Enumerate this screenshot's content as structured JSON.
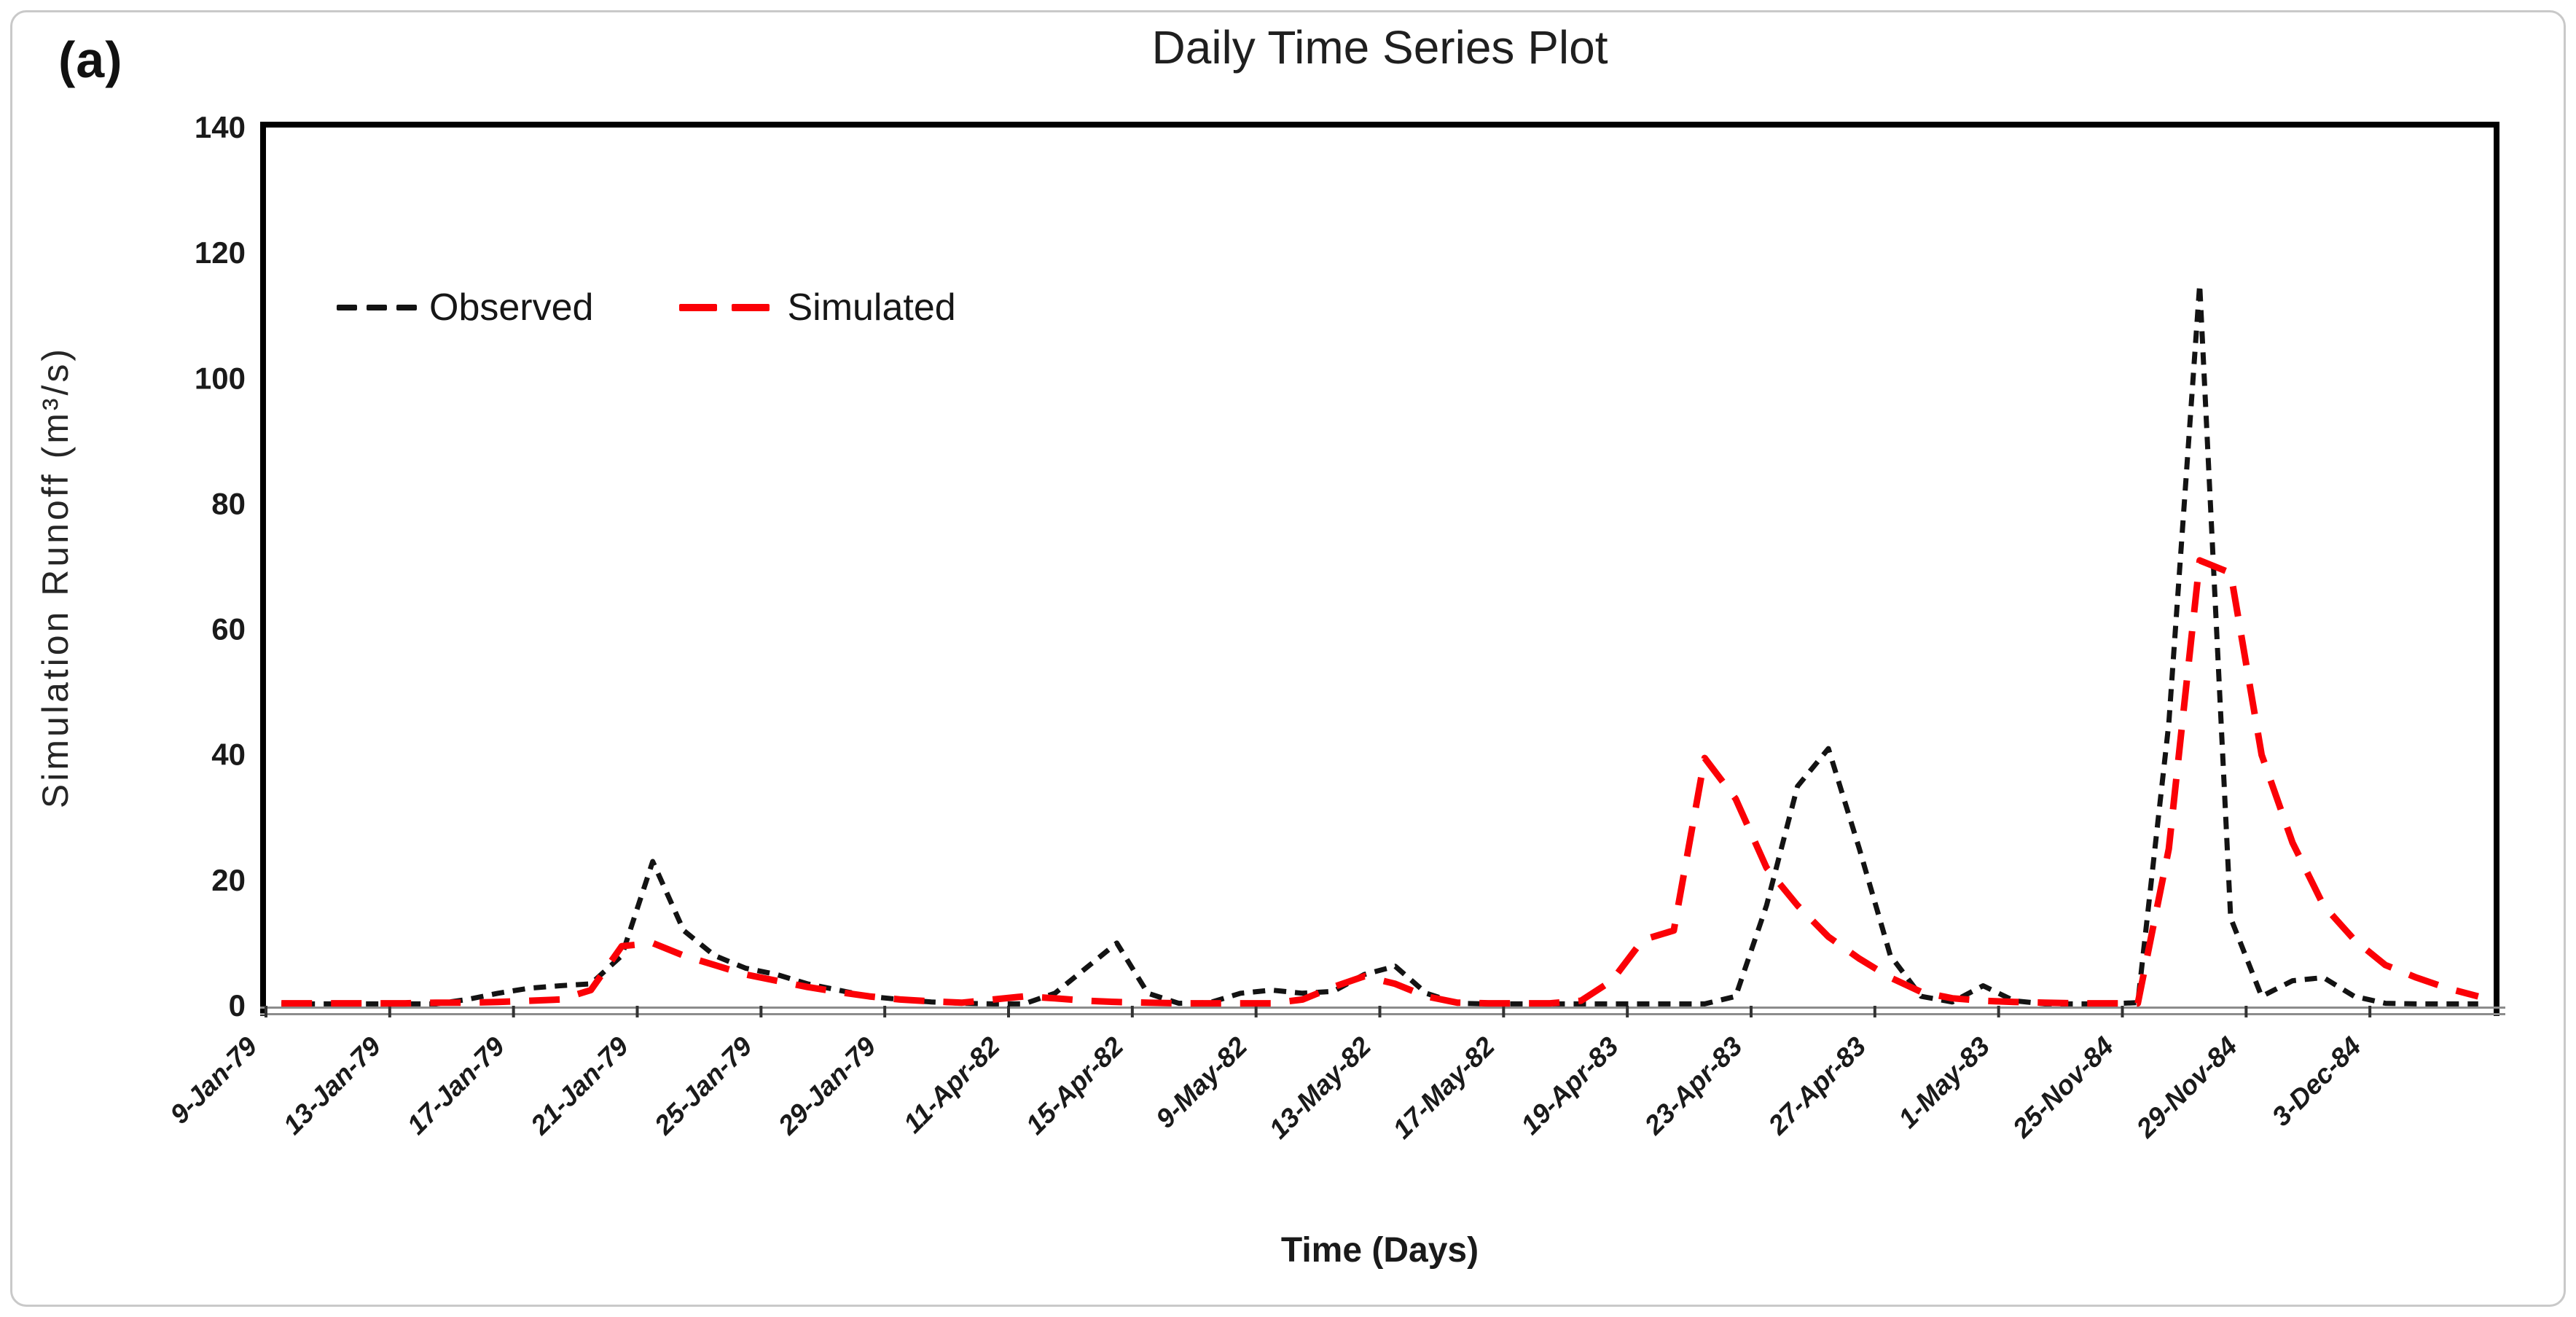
{
  "figure": {
    "panel_label": "(a)",
    "title": "Daily Time Series Plot",
    "x_axis_title": "Time (Days)",
    "y_axis_title": "Simulation Runoff (m³/s)"
  },
  "legend": {
    "observed_label": "Observed",
    "simulated_label": "Simulated"
  },
  "colors": {
    "observed": "#131313",
    "simulated": "#fb0006",
    "axis_gray": "#8c8c8c",
    "border_black": "#000000"
  },
  "chart_data": {
    "type": "line",
    "title": "Daily Time Series Plot",
    "xlabel": "Time (Days)",
    "ylabel": "Simulation Runoff (m³/s)",
    "ylim": [
      0,
      140
    ],
    "y_ticks": [
      0,
      20,
      40,
      60,
      80,
      100,
      120,
      140
    ],
    "grid": false,
    "legend_position": "inside-top-left",
    "n_points": 72,
    "x_tick_indices": [
      0,
      4,
      8,
      12,
      16,
      20,
      24,
      28,
      32,
      36,
      40,
      44,
      48,
      52,
      56,
      60,
      64,
      68
    ],
    "x_tick_labels": [
      "9-Jan-79",
      "13-Jan-79",
      "17-Jan-79",
      "21-Jan-79",
      "25-Jan-79",
      "29-Jan-79",
      "11-Apr-82",
      "15-Apr-82",
      "9-May-82",
      "13-May-82",
      "17-May-82",
      "19-Apr-83",
      "23-Apr-83",
      "27-Apr-83",
      "1-May-83",
      "25-Nov-84",
      "29-Nov-84",
      "3-Dec-84"
    ],
    "series": [
      {
        "name": "Observed",
        "color": "#131313",
        "dash": [
          17,
          12
        ],
        "stroke_width": 7,
        "values": [
          0.3,
          0.3,
          0.3,
          0.3,
          0.3,
          0.3,
          1.0,
          2.0,
          2.8,
          3.2,
          3.5,
          8,
          23,
          12,
          8,
          6,
          5,
          3.5,
          2.5,
          1.5,
          1.0,
          0.6,
          0.4,
          0.3,
          0.3,
          2,
          6,
          10,
          2,
          0.4,
          0.5,
          2,
          2.5,
          2,
          2.3,
          5,
          6.3,
          2,
          0.4,
          0.3,
          0.3,
          0.3,
          0.3,
          0.3,
          0.3,
          0.3,
          0.3,
          1.5,
          16,
          35,
          41,
          25,
          8,
          1.5,
          0.6,
          3.2,
          0.8,
          0.3,
          0.3,
          0.3,
          0.5,
          45,
          115,
          14,
          1.5,
          4,
          4.5,
          1.5,
          0.4,
          0.3,
          0.3,
          0.3
        ]
      },
      {
        "name": "Simulated",
        "color": "#fb0006",
        "dash": [
          42,
          26
        ],
        "stroke_width": 9,
        "values": [
          0.4,
          0.4,
          0.4,
          0.4,
          0.4,
          0.5,
          0.5,
          0.6,
          0.8,
          1.0,
          2.5,
          9.5,
          10,
          8,
          6.5,
          5,
          4,
          3,
          2.2,
          1.5,
          1.0,
          0.7,
          0.5,
          1.0,
          1.5,
          1.2,
          0.8,
          0.6,
          0.5,
          0.4,
          0.4,
          0.4,
          0.4,
          1.0,
          3.0,
          4.7,
          3.5,
          1.5,
          0.5,
          0.4,
          0.4,
          0.4,
          0.8,
          4,
          10.5,
          12,
          39.5,
          33,
          22,
          16,
          11,
          7.5,
          4.5,
          2.2,
          1.2,
          0.8,
          0.6,
          0.5,
          0.4,
          0.4,
          0.4,
          25,
          71,
          69,
          40,
          26,
          16,
          10.5,
          6.5,
          4.5,
          2.8,
          1.5
        ]
      }
    ]
  }
}
